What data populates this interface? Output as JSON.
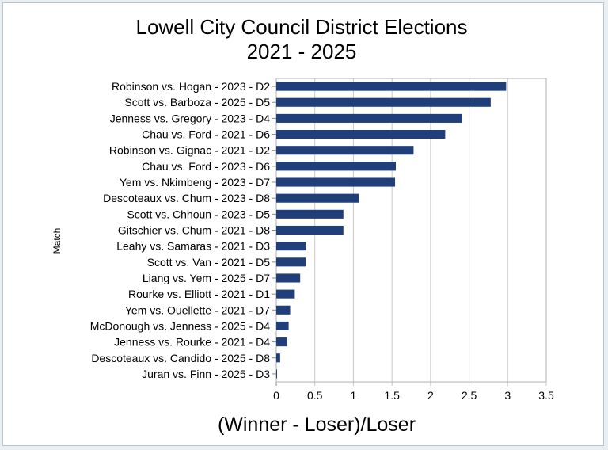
{
  "chart_data": {
    "type": "bar",
    "orientation": "horizontal",
    "title": "Lowell City Council District Elections",
    "subtitle": "2021 - 2025",
    "xlabel": "(Winner - Loser)/Loser",
    "ylabel": "Match",
    "xlim": [
      0,
      3.5
    ],
    "xticks": [
      "0",
      "0.5",
      "1",
      "1.5",
      "2",
      "2.5",
      "3",
      "3.5"
    ],
    "grid": true,
    "legend": "none",
    "bar_color": "#1f3e7a",
    "categories": [
      "Robinson vs. Hogan - 2023 - D2",
      "Scott vs. Barboza - 2025 - D5",
      "Jenness vs. Gregory - 2023 - D4",
      "Chau vs. Ford - 2021 - D6",
      "Robinson vs. Gignac - 2021 - D2",
      "Chau vs. Ford - 2023 - D6",
      "Yem vs. Nkimbeng - 2023 - D7",
      "Descoteaux vs. Chum - 2023 - D8",
      "Scott vs. Chhoun - 2023 - D5",
      "Gitschier vs. Chum - 2021 - D8",
      "Leahy vs. Samaras - 2021 - D3",
      "Scott vs. Van - 2021 - D5",
      "Liang vs. Yem - 2025 - D7",
      "Rourke vs. Elliott - 2021 - D1",
      "Yem vs. Ouellette - 2021 - D7",
      "McDonough vs. Jenness - 2025 - D4",
      "Jenness vs. Rourke - 2021 - D4",
      "Descoteaux vs. Candido - 2025 - D8",
      "Juran vs. Finn - 2025 - D3"
    ],
    "values": [
      2.98,
      2.78,
      2.41,
      2.19,
      1.78,
      1.55,
      1.54,
      1.07,
      0.87,
      0.87,
      0.38,
      0.38,
      0.31,
      0.24,
      0.18,
      0.16,
      0.14,
      0.05,
      0.01
    ]
  }
}
